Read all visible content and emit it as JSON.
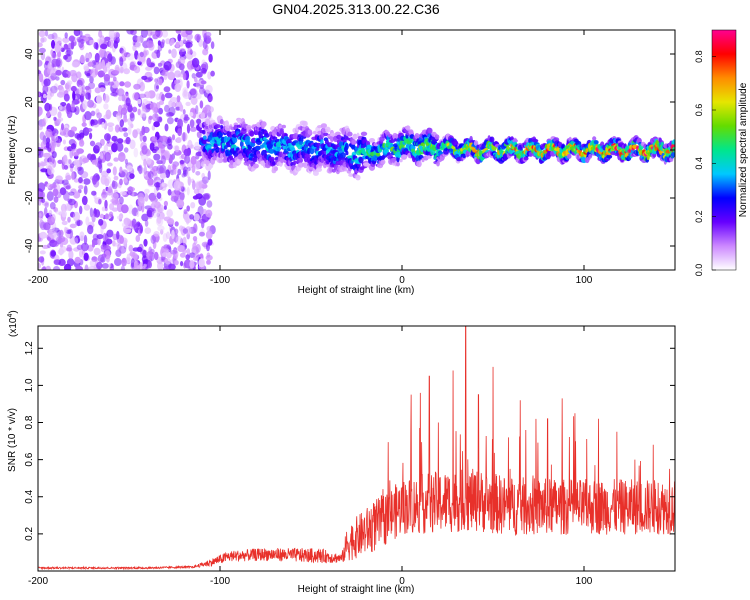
{
  "title": "GN04.2025.313.00.22.C36",
  "chart_data": [
    {
      "type": "heatmap",
      "xlabel": "Height of straight line (km)",
      "ylabel": "Frequency (Hz)",
      "xlim": [
        -200,
        150
      ],
      "ylim": [
        -50,
        50
      ],
      "xticks": [
        -200,
        -100,
        0,
        100
      ],
      "yticks": [
        -40,
        -20,
        0,
        20,
        40
      ],
      "colorbar": {
        "label": "Normalized spectral amplitude",
        "range": [
          0.0,
          0.9
        ],
        "ticks": [
          "0.0",
          "0.2",
          "0.4",
          "0.6",
          "0.8"
        ],
        "colors": [
          "#ffffff",
          "#cc88ff",
          "#6600ff",
          "#0000ff",
          "#00c8ff",
          "#00e68c",
          "#64dc00",
          "#e6e600",
          "#ff8c00",
          "#ff0000",
          "#ff0090"
        ]
      },
      "ridge": {
        "description_free": true,
        "x": [
          -110,
          -100,
          -80,
          -60,
          -40,
          -20,
          0,
          20,
          40,
          60,
          80,
          100,
          120,
          150
        ],
        "center_freq": [
          5,
          3,
          2,
          1,
          0,
          -2,
          2,
          1,
          0,
          0,
          0,
          0,
          0,
          0
        ],
        "amplitude": [
          0.35,
          0.4,
          0.4,
          0.38,
          0.35,
          0.45,
          0.55,
          0.6,
          0.7,
          0.75,
          0.8,
          0.8,
          0.85,
          0.85
        ]
      },
      "noise_region_x": [
        -200,
        -110
      ]
    },
    {
      "type": "line",
      "xlabel": "Height of straight line (km)",
      "ylabel": "SNR (10 * v/v)",
      "yscale_label": "(x10",
      "yscale_exp": "4",
      "yscale_close": ")",
      "xlim": [
        -200,
        150
      ],
      "ylim": [
        0.0,
        1.32
      ],
      "xticks": [
        -200,
        -100,
        0,
        100
      ],
      "yticks": [
        "0.2",
        "0.4",
        "0.6",
        "0.8",
        "1.0",
        "1.2"
      ],
      "color": "#e8302a",
      "envelope": {
        "x": [
          -200,
          -140,
          -115,
          -105,
          -95,
          -75,
          -45,
          -33,
          -30,
          -15,
          0,
          20,
          40,
          60,
          100,
          150
        ],
        "base": [
          0.015,
          0.015,
          0.02,
          0.04,
          0.07,
          0.08,
          0.07,
          0.06,
          0.12,
          0.2,
          0.3,
          0.32,
          0.33,
          0.3,
          0.3,
          0.3
        ],
        "spread": [
          0.01,
          0.01,
          0.01,
          0.04,
          0.06,
          0.07,
          0.08,
          0.05,
          0.2,
          0.28,
          0.3,
          0.34,
          0.34,
          0.32,
          0.3,
          0.3
        ]
      },
      "peaks": [
        {
          "x": 5,
          "y": 0.95
        },
        {
          "x": 10,
          "y": 0.96
        },
        {
          "x": 15,
          "y": 1.05
        },
        {
          "x": 20,
          "y": 0.8
        },
        {
          "x": 28,
          "y": 1.08
        },
        {
          "x": 35,
          "y": 1.32
        },
        {
          "x": 42,
          "y": 0.95
        },
        {
          "x": 50,
          "y": 1.1
        },
        {
          "x": 65,
          "y": 0.92
        },
        {
          "x": 80,
          "y": 0.82
        },
        {
          "x": 88,
          "y": 0.93
        },
        {
          "x": 95,
          "y": 0.85
        },
        {
          "x": 108,
          "y": 0.82
        },
        {
          "x": 118,
          "y": 0.75
        },
        {
          "x": 128,
          "y": 0.6
        },
        {
          "x": 138,
          "y": 0.68
        },
        {
          "x": 147,
          "y": 0.55
        }
      ]
    }
  ]
}
